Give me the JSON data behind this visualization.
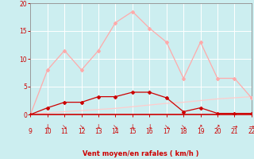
{
  "x": [
    9,
    10,
    11,
    12,
    13,
    14,
    15,
    16,
    17,
    18,
    19,
    20,
    21,
    22
  ],
  "rafales": [
    0,
    8,
    11.5,
    8,
    11.5,
    16.5,
    18.5,
    15.5,
    13,
    6.5,
    13,
    6.5,
    6.5,
    3
  ],
  "moyen": [
    0,
    1.2,
    2.2,
    2.2,
    3.2,
    3.2,
    4.0,
    4.0,
    3.0,
    0.5,
    1.2,
    0.2,
    0.2,
    0.2
  ],
  "flat": [
    0,
    0.3,
    0.5,
    0.7,
    0.9,
    1.1,
    1.4,
    1.7,
    2.0,
    2.2,
    2.5,
    2.8,
    3.0,
    3.2
  ],
  "color_rafales": "#ffaaaa",
  "color_moyen": "#cc0000",
  "color_flat": "#ffcccc",
  "bg_color": "#cceef0",
  "grid_color": "#aadddd",
  "spine_color": "#888888",
  "axis_color": "#cc0000",
  "xlabel": "Vent moyen/en rafales ( km/h )",
  "xlim": [
    9,
    22
  ],
  "ylim": [
    0,
    20
  ],
  "yticks": [
    0,
    5,
    10,
    15,
    20
  ],
  "xticks": [
    9,
    10,
    11,
    12,
    13,
    14,
    15,
    16,
    17,
    18,
    19,
    20,
    21,
    22
  ],
  "arrows": [
    "↓",
    "↘",
    "↘",
    "↓",
    "↘",
    "↓",
    "↓",
    "↘",
    "↘",
    "↗",
    "↗",
    "→",
    "→"
  ]
}
